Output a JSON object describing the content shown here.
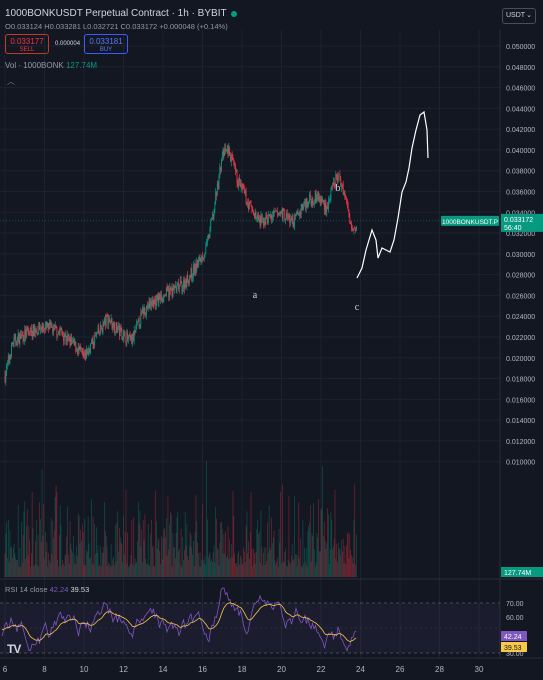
{
  "header": {
    "title": "1000BONKUSDT Perpetual Contract · 1h · BYBIT",
    "ohlc": "O0.033124 H0.033281 L0.032721 C0.033172 +0.000048 (+0.14%)"
  },
  "trade": {
    "sell_price": "0.033177",
    "sell_label": "SELL",
    "spread": "0.000004",
    "buy_price": "0.033181",
    "buy_label": "BUY"
  },
  "volume_legend": {
    "label": "Vol · 1000BONK",
    "value": "127.74M"
  },
  "currency_selector": {
    "label": "USDT",
    "chevron": "chevron-down-icon"
  },
  "price_axis": {
    "ticks": [
      "0.050000",
      "0.048000",
      "0.046000",
      "0.044000",
      "0.042000",
      "0.040000",
      "0.038000",
      "0.036000",
      "0.034000",
      "0.032000",
      "0.030000",
      "0.028000",
      "0.026000",
      "0.024000",
      "0.022000",
      "0.020000",
      "0.018000",
      "0.016000",
      "0.014000",
      "0.012000",
      "0.010000"
    ],
    "last_price": "0.033172",
    "countdown": "56:40",
    "symbol_tag": "1000BONKUSDT.P",
    "volume_tag": "127.74M"
  },
  "time_axis": {
    "ticks": [
      "6",
      "8",
      "10",
      "12",
      "14",
      "16",
      "18",
      "20",
      "22",
      "24",
      "26",
      "28",
      "30"
    ]
  },
  "rsi": {
    "label": "RSI 14 close",
    "value1": "42.24",
    "value2": "39.53",
    "levels": [
      "70.00",
      "60.00",
      "30.00"
    ],
    "upper": 70,
    "lower": 30
  },
  "annotations": {
    "a": "a",
    "b": "b",
    "c": "c"
  },
  "colors": {
    "background": "#131722",
    "up": "#089981",
    "down": "#f23645",
    "rsi_line": "#7e57c2",
    "rsi_ma": "#f7c948",
    "drawing": "#ffffff"
  },
  "logo": "TV"
}
